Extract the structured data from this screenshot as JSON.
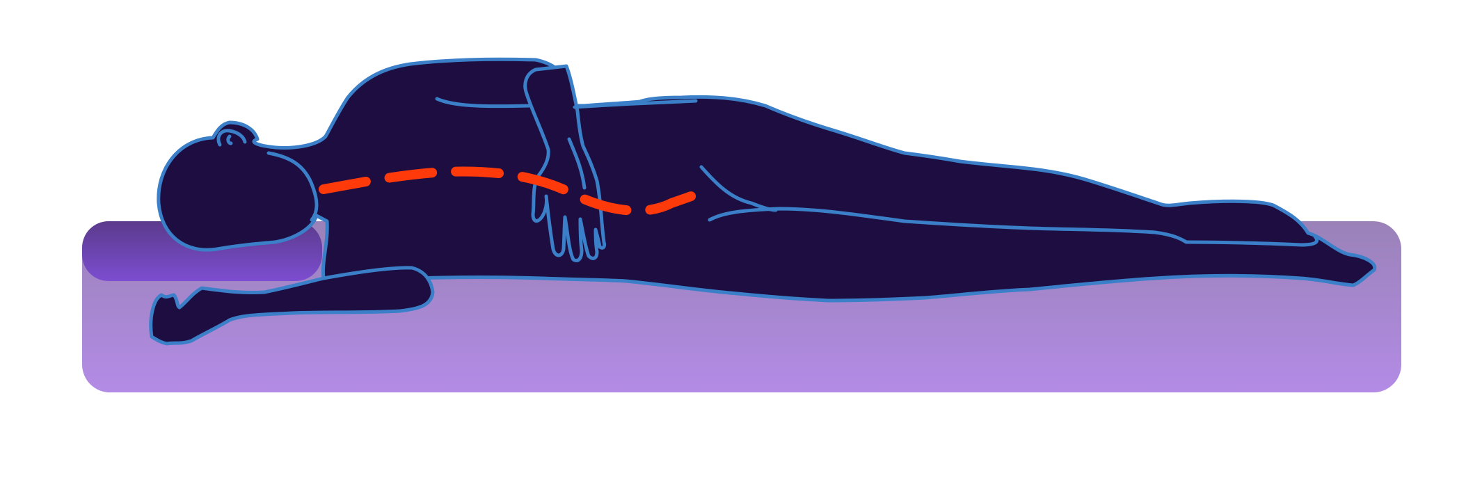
{
  "colors": {
    "background": "#ffffff",
    "silhouette_fill": "#1d0d40",
    "outline": "#3a7fc8",
    "spine_line": "#ff3a0a",
    "mattress_top": "#9a82b8",
    "mattress_bottom": "#b38be6",
    "pillow_top": "#5b3b8c",
    "pillow_bottom": "#7c4dd0"
  },
  "icons": {
    "mattress": "mattress-icon",
    "pillow": "pillow-icon",
    "person": "side-sleeper-silhouette",
    "spine": "spine-alignment-line"
  }
}
